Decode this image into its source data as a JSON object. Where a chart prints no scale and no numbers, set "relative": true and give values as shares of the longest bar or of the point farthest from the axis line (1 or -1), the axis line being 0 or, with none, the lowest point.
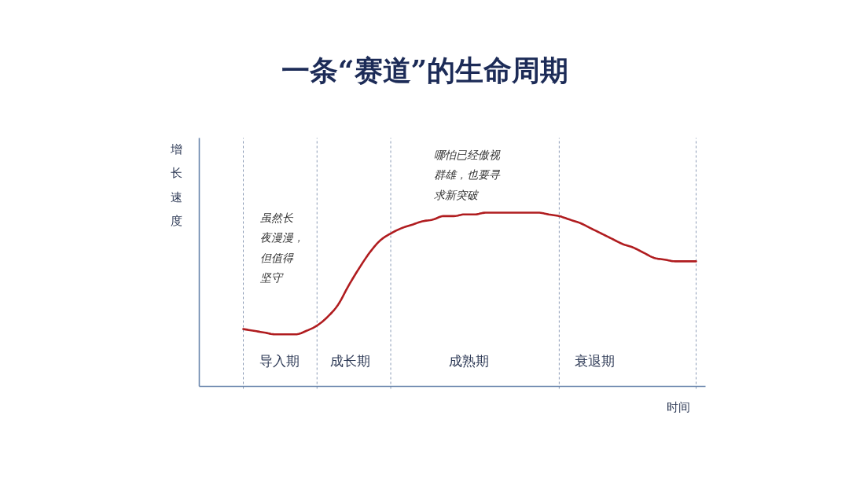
{
  "chart_data": {
    "type": "line",
    "title": "一条“赛道”的生命周期",
    "xlabel": "时间",
    "ylabel": "增长速度",
    "relative": true,
    "grid": "x",
    "categories": [
      null,
      null,
      null,
      null,
      null,
      null,
      null,
      null,
      null,
      null,
      null,
      null,
      null,
      null,
      null,
      null,
      null,
      null,
      null,
      null,
      null,
      null,
      null,
      null,
      null,
      null,
      null,
      null,
      null,
      null,
      null,
      null,
      null,
      null,
      null,
      null,
      null,
      null,
      null,
      null,
      null,
      null,
      null,
      null
    ],
    "series": [
      {
        "color": "#b01c1f",
        "values": [
          0.33,
          0.32,
          0.31,
          0.3,
          0.3,
          0.3,
          0.32,
          0.35,
          0.4,
          0.47,
          0.58,
          0.68,
          0.77,
          0.84,
          0.88,
          0.91,
          0.93,
          0.95,
          0.96,
          0.98,
          0.98,
          0.99,
          0.99,
          1.0,
          1.0,
          1.0,
          1.0,
          1.0,
          1.0,
          0.99,
          0.98,
          0.96,
          0.94,
          0.91,
          0.88,
          0.85,
          0.82,
          0.8,
          0.77,
          0.74,
          0.73,
          0.72,
          0.72,
          0.72
        ]
      }
    ],
    "annotations": [
      "虽然长夜漫漫，但值得坚守",
      "哪怕已经傲视群雄，也要寻求新突破",
      "导入期",
      "成长期",
      "成熟期",
      "衰退期"
    ]
  }
}
